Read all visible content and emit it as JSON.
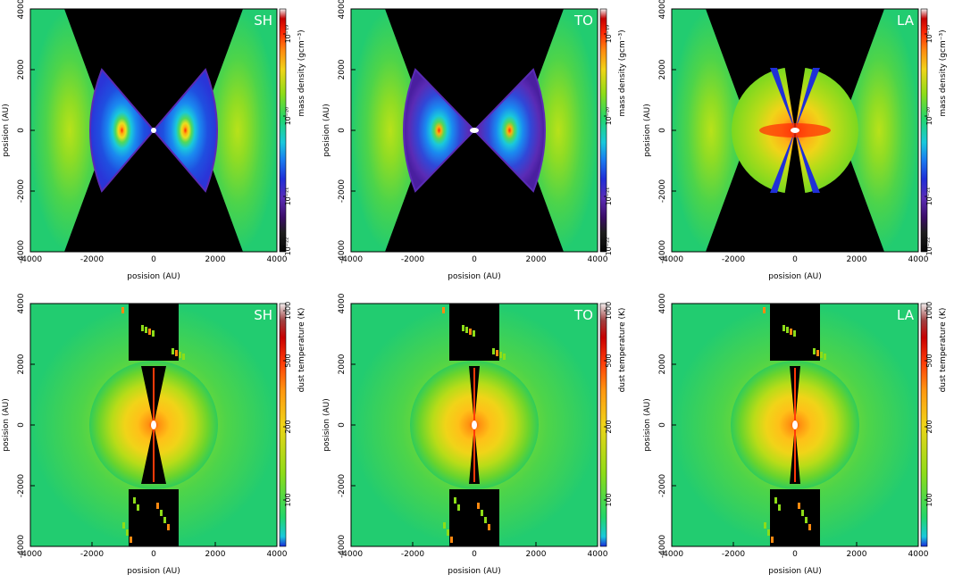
{
  "figure": {
    "rows": [
      {
        "colorbar_label": "mass density (gcm⁻³)",
        "colorbar_ticks": [
          "10⁻¹⁹",
          "10⁻²⁰",
          "10⁻²¹",
          "10⁻²²"
        ],
        "panels": [
          {
            "tag": "SH",
            "kind": "density",
            "model": "SH"
          },
          {
            "tag": "TO",
            "kind": "density",
            "model": "TO"
          },
          {
            "tag": "LA",
            "kind": "density",
            "model": "LA"
          }
        ]
      },
      {
        "colorbar_label": "dust temperature (K)",
        "colorbar_ticks": [
          "1000",
          "500",
          "200",
          "100"
        ],
        "panels": [
          {
            "tag": "SH",
            "kind": "temperature",
            "model": "SH"
          },
          {
            "tag": "TO",
            "kind": "temperature",
            "model": "TO"
          },
          {
            "tag": "LA",
            "kind": "temperature",
            "model": "LA"
          }
        ]
      }
    ],
    "xlabel": "posision (AU)",
    "ylabel": "posision (AU)",
    "xticks": [
      "-4000",
      "-2000",
      "0",
      "2000",
      "4000"
    ],
    "yticks": [
      "4000",
      "2000",
      "0",
      "-2000",
      "-4000"
    ]
  },
  "chart_data": [
    {
      "type": "heatmap",
      "panel": "SH",
      "quantity": "mass density",
      "xlabel": "posision (AU)",
      "ylabel": "posision (AU)",
      "xlim": [
        -4000,
        4000
      ],
      "ylim": [
        -4000,
        4000
      ],
      "colorbar": {
        "label": "mass density (gcm⁻³)",
        "scale": "log",
        "range": [
          1e-22,
          3e-19
        ],
        "ticks": [
          1e-19,
          1e-20,
          1e-21,
          1e-22
        ]
      }
    },
    {
      "type": "heatmap",
      "panel": "TO",
      "quantity": "mass density",
      "xlabel": "posision (AU)",
      "ylabel": "posision (AU)",
      "xlim": [
        -4000,
        4000
      ],
      "ylim": [
        -4000,
        4000
      ],
      "colorbar": {
        "label": "mass density (gcm⁻³)",
        "scale": "log",
        "range": [
          1e-22,
          3e-19
        ],
        "ticks": [
          1e-19,
          1e-20,
          1e-21,
          1e-22
        ]
      }
    },
    {
      "type": "heatmap",
      "panel": "LA",
      "quantity": "mass density",
      "xlabel": "posision (AU)",
      "ylabel": "posision (AU)",
      "xlim": [
        -4000,
        4000
      ],
      "ylim": [
        -4000,
        4000
      ],
      "colorbar": {
        "label": "mass density (gcm⁻³)",
        "scale": "log",
        "range": [
          1e-22,
          3e-19
        ],
        "ticks": [
          1e-19,
          1e-20,
          1e-21,
          1e-22
        ]
      }
    },
    {
      "type": "heatmap",
      "panel": "SH",
      "quantity": "dust temperature",
      "xlabel": "posision (AU)",
      "ylabel": "posision (AU)",
      "xlim": [
        -4000,
        4000
      ],
      "ylim": [
        -4000,
        4000
      ],
      "colorbar": {
        "label": "dust temperature (K)",
        "scale": "log",
        "range": [
          50,
          1000
        ],
        "ticks": [
          1000,
          500,
          200,
          100
        ]
      }
    },
    {
      "type": "heatmap",
      "panel": "TO",
      "quantity": "dust temperature",
      "xlabel": "posision (AU)",
      "ylabel": "posision (AU)",
      "xlim": [
        -4000,
        4000
      ],
      "ylim": [
        -4000,
        4000
      ],
      "colorbar": {
        "label": "dust temperature (K)",
        "scale": "log",
        "range": [
          50,
          1000
        ],
        "ticks": [
          1000,
          500,
          200,
          100
        ]
      }
    },
    {
      "type": "heatmap",
      "panel": "LA",
      "quantity": "dust temperature",
      "xlabel": "posision (AU)",
      "ylabel": "posision (AU)",
      "xlim": [
        -4000,
        4000
      ],
      "ylim": [
        -4000,
        4000
      ],
      "colorbar": {
        "label": "dust temperature (K)",
        "scale": "log",
        "range": [
          50,
          1000
        ],
        "ticks": [
          1000,
          500,
          200,
          100
        ]
      }
    }
  ]
}
